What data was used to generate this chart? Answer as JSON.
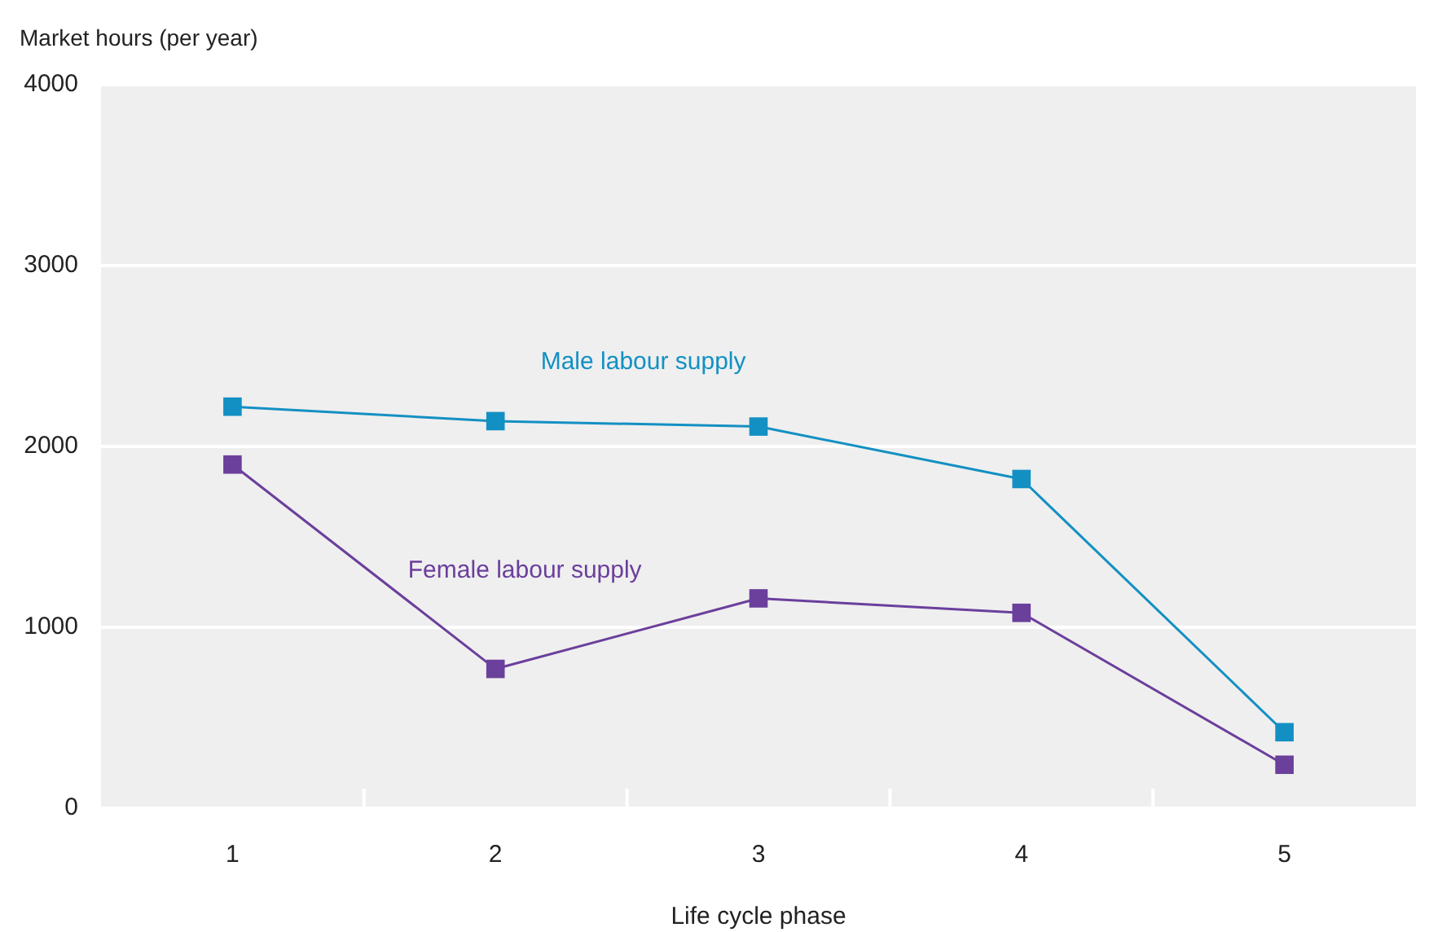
{
  "chart_data": {
    "type": "line",
    "xlabel": "Life cycle phase",
    "ylabel": "Market hours (per year)",
    "categories": [
      "1",
      "2",
      "3",
      "4",
      "5"
    ],
    "series": [
      {
        "name": "Male labour supply",
        "color": "#1390c3",
        "values": [
          2220,
          2140,
          2110,
          1820,
          420
        ]
      },
      {
        "name": "Female labour supply",
        "color": "#6b3f9c",
        "values": [
          1900,
          770,
          1160,
          1080,
          240
        ]
      }
    ],
    "ylim": [
      0,
      4000
    ],
    "yticks": [
      0,
      1000,
      2000,
      3000,
      4000
    ],
    "grid": "y",
    "legend": false,
    "marker": "square",
    "line_style": "solid"
  }
}
